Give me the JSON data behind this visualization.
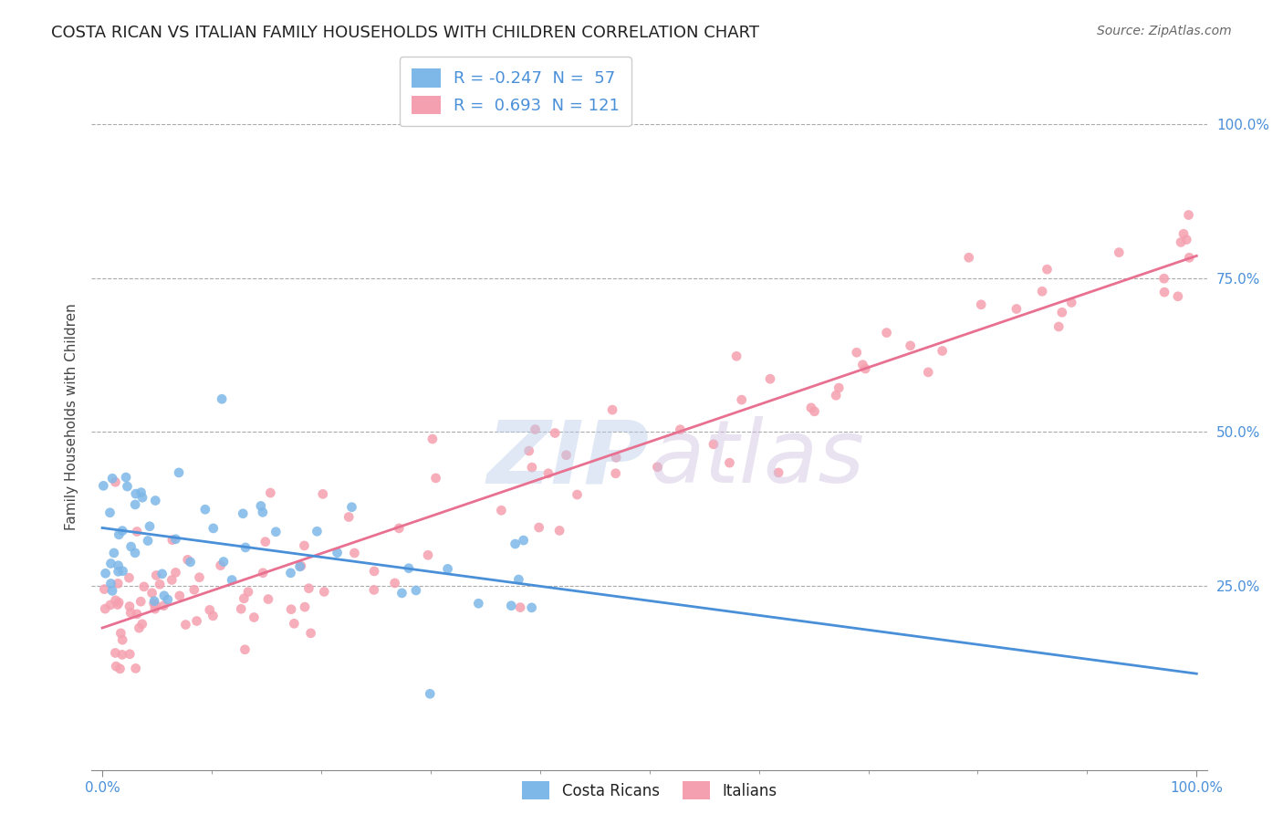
{
  "title": "COSTA RICAN VS ITALIAN FAMILY HOUSEHOLDS WITH CHILDREN CORRELATION CHART",
  "source": "Source: ZipAtlas.com",
  "ylabel": "Family Households with Children",
  "legend_label1": "Costa Ricans",
  "legend_label2": "Italians",
  "legend_line1": "R = -0.247  N =  57",
  "legend_line2": "R =  0.693  N = 121",
  "ytick_labels": [
    "25.0%",
    "50.0%",
    "75.0%",
    "100.0%"
  ],
  "ytick_positions": [
    0.25,
    0.5,
    0.75,
    1.0
  ],
  "color_blue": "#7eb8e8",
  "color_pink": "#f5a0b0",
  "color_line_blue": "#4a90d9",
  "color_line_pink": "#e87090",
  "color_text_blue": "#4a90d9",
  "background": "#ffffff"
}
